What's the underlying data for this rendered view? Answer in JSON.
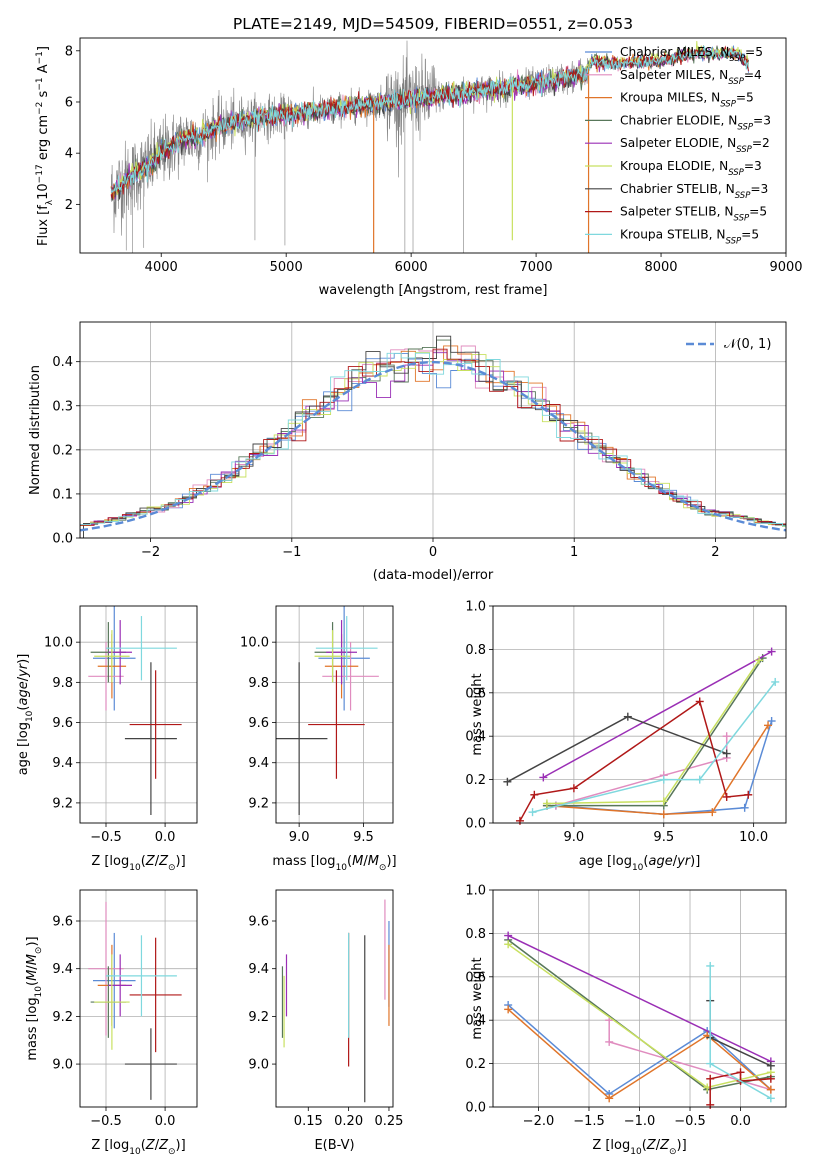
{
  "title": "PLATE=2149, MJD=54509, FIBERID=0551, z=0.053",
  "colors": {
    "Chabrier MILES": "#5b8bd6",
    "Salpeter MILES": "#e08cbf",
    "Kroupa MILES": "#e0752a",
    "Chabrier ELODIE": "#58775a",
    "Salpeter ELODIE": "#9a2fb5",
    "Kroupa ELODIE": "#c8e060",
    "Chabrier STELIB": "#444444",
    "Salpeter STELIB": "#b01818",
    "Kroupa STELIB": "#7fd8de",
    "data": "#808080",
    "normal": "#5b8bd6"
  },
  "legend_labels": [
    {
      "pre": "Chabrier MILES, N",
      "sub": "SSP",
      "post": "=5"
    },
    {
      "pre": "Salpeter MILES, N",
      "sub": "SSP",
      "post": "=4"
    },
    {
      "pre": "Kroupa MILES, N",
      "sub": "SSP",
      "post": "=5"
    },
    {
      "pre": "Chabrier ELODIE, N",
      "sub": "SSP",
      "post": "=3"
    },
    {
      "pre": "Salpeter ELODIE, N",
      "sub": "SSP",
      "post": "=2"
    },
    {
      "pre": "Kroupa ELODIE, N",
      "sub": "SSP",
      "post": "=3"
    },
    {
      "pre": "Chabrier STELIB, N",
      "sub": "SSP",
      "post": "=3"
    },
    {
      "pre": "Salpeter STELIB, N",
      "sub": "SSP",
      "post": "=5"
    },
    {
      "pre": "Kroupa STELIB, N",
      "sub": "SSP",
      "post": "=5"
    }
  ],
  "chart_data": [
    {
      "id": "spectrum",
      "type": "line",
      "xlabel": "wavelength [Angstrom, rest frame]",
      "ylabel": "Flux [f_λ 10^-17 erg cm^-2 s^-1 A^-1]",
      "xlim": [
        3350,
        9000
      ],
      "ylim": [
        0.1,
        8.5
      ],
      "xticks": [
        "4000",
        "5000",
        "6000",
        "7000",
        "8000",
        "9000"
      ],
      "yticks": [
        "2",
        "4",
        "6",
        "8"
      ],
      "grid": false,
      "legend": "top-right",
      "continuum_knots": [
        [
          3600,
          2.4
        ],
        [
          3700,
          2.9
        ],
        [
          3800,
          3.2
        ],
        [
          3900,
          3.5
        ],
        [
          4000,
          4.0
        ],
        [
          4100,
          4.3
        ],
        [
          4200,
          4.6
        ],
        [
          4300,
          4.6
        ],
        [
          4400,
          4.9
        ],
        [
          4500,
          5.1
        ],
        [
          4600,
          5.2
        ],
        [
          4800,
          5.4
        ],
        [
          5000,
          5.5
        ],
        [
          5200,
          5.6
        ],
        [
          5500,
          5.8
        ],
        [
          6000,
          6.1
        ],
        [
          6500,
          6.4
        ],
        [
          7000,
          6.7
        ],
        [
          7400,
          7.1
        ],
        [
          7450,
          7.6
        ],
        [
          7600,
          7.5
        ],
        [
          8000,
          7.6
        ],
        [
          8300,
          7.9
        ],
        [
          8600,
          7.9
        ],
        [
          8650,
          7.7
        ],
        [
          8700,
          7.5
        ]
      ],
      "data_range": [
        3600,
        7420
      ],
      "data_spikes": [
        [
          3720,
          0.2
        ],
        [
          3770,
          0.1
        ],
        [
          3860,
          0.3
        ],
        [
          4750,
          0.6
        ],
        [
          4990,
          0.4
        ],
        [
          5950,
          0.1
        ],
        [
          6015,
          0.1
        ],
        [
          6420,
          0.1
        ]
      ],
      "model_dips": [
        [
          3620,
          2.2
        ],
        [
          5700,
          0.1
        ],
        [
          6810,
          0.6
        ],
        [
          7420,
          0.1
        ]
      ]
    },
    {
      "id": "residuals",
      "type": "histogram",
      "xlabel": "(data-model)/error",
      "ylabel": "Normed distribution",
      "xlim": [
        -2.5,
        2.5
      ],
      "ylim": [
        0,
        0.49
      ],
      "xticks": [
        "-2",
        "-1",
        "0",
        "1",
        "2"
      ],
      "yticks": [
        "0.0",
        "0.1",
        "0.2",
        "0.3",
        "0.4"
      ],
      "grid": true,
      "legend": "top-right",
      "normal_label": "𝒩(0, 1)",
      "bin_width": 0.1
    },
    {
      "id": "age_Z",
      "type": "errorbar",
      "xlabel": "Z [log10(Z/Z⊙)]",
      "ylabel": "age [log10(age/yr)]",
      "xlim": [
        -0.72,
        0.27
      ],
      "ylim": [
        9.1,
        10.18
      ],
      "xticks": [
        "-0.5",
        "0.0"
      ],
      "yticks": [
        "9.2",
        "9.4",
        "9.6",
        "9.8",
        "10.0"
      ],
      "grid": true,
      "points": [
        {
          "model": "Chabrier MILES",
          "x": -0.43,
          "xerr": 0.18,
          "y": 9.92,
          "yerr": 0.26
        },
        {
          "model": "Salpeter MILES",
          "x": -0.5,
          "xerr": 0.15,
          "y": 9.83,
          "yerr": 0.17
        },
        {
          "model": "Kroupa MILES",
          "x": -0.45,
          "xerr": 0.12,
          "y": 9.88,
          "yerr": 0.16
        },
        {
          "model": "Chabrier ELODIE",
          "x": -0.48,
          "xerr": 0.15,
          "y": 9.95,
          "yerr": 0.15
        },
        {
          "model": "Salpeter ELODIE",
          "x": -0.38,
          "xerr": 0.1,
          "y": 9.95,
          "yerr": 0.16
        },
        {
          "model": "Kroupa ELODIE",
          "x": -0.45,
          "xerr": 0.15,
          "y": 9.93,
          "yerr": 0.13
        },
        {
          "model": "Chabrier STELIB",
          "x": -0.12,
          "xerr": 0.22,
          "y": 9.52,
          "yerr": 0.38
        },
        {
          "model": "Salpeter STELIB",
          "x": -0.08,
          "xerr": 0.22,
          "y": 9.59,
          "yerr": 0.27
        },
        {
          "model": "Kroupa STELIB",
          "x": -0.2,
          "xerr": 0.3,
          "y": 9.97,
          "yerr": 0.16
        }
      ]
    },
    {
      "id": "age_mass",
      "type": "errorbar",
      "xlabel": "mass [log10(M/M⊙)]",
      "ylabel": "",
      "xlim": [
        8.82,
        9.73
      ],
      "ylim": [
        9.1,
        10.18
      ],
      "xticks": [
        "9.0",
        "9.5"
      ],
      "yticks": [
        "9.2",
        "9.4",
        "9.6",
        "9.8",
        "10.0"
      ],
      "grid": true,
      "points": [
        {
          "model": "Chabrier MILES",
          "x": 9.35,
          "xerr": 0.2,
          "y": 9.92,
          "yerr": 0.26
        },
        {
          "model": "Salpeter MILES",
          "x": 9.4,
          "xerr": 0.22,
          "y": 9.83,
          "yerr": 0.17
        },
        {
          "model": "Kroupa MILES",
          "x": 9.33,
          "xerr": 0.13,
          "y": 9.88,
          "yerr": 0.16
        },
        {
          "model": "Chabrier ELODIE",
          "x": 9.26,
          "xerr": 0.14,
          "y": 9.95,
          "yerr": 0.15
        },
        {
          "model": "Salpeter ELODIE",
          "x": 9.33,
          "xerr": 0.12,
          "y": 9.95,
          "yerr": 0.16
        },
        {
          "model": "Kroupa ELODIE",
          "x": 9.26,
          "xerr": 0.14,
          "y": 9.93,
          "yerr": 0.13
        },
        {
          "model": "Chabrier STELIB",
          "x": 9.0,
          "xerr": 0.22,
          "y": 9.52,
          "yerr": 0.38
        },
        {
          "model": "Salpeter STELIB",
          "x": 9.29,
          "xerr": 0.22,
          "y": 9.59,
          "yerr": 0.27
        },
        {
          "model": "Kroupa STELIB",
          "x": 9.37,
          "xerr": 0.24,
          "y": 9.97,
          "yerr": 0.16
        }
      ]
    },
    {
      "id": "mass_Z",
      "type": "errorbar",
      "xlabel": "Z [log10(Z/Z⊙)]",
      "ylabel": "mass [log10(M/M⊙)]",
      "xlim": [
        -0.72,
        0.27
      ],
      "ylim": [
        8.82,
        9.73
      ],
      "xticks": [
        "-0.5",
        "0.0"
      ],
      "yticks": [
        "9.0",
        "9.2",
        "9.4",
        "9.6"
      ],
      "grid": true,
      "points": [
        {
          "model": "Chabrier MILES",
          "x": -0.43,
          "xerr": 0.18,
          "y": 9.35,
          "yerr": 0.2
        },
        {
          "model": "Salpeter MILES",
          "x": -0.5,
          "xerr": 0.15,
          "y": 9.4,
          "yerr": 0.28
        },
        {
          "model": "Kroupa MILES",
          "x": -0.45,
          "xerr": 0.12,
          "y": 9.33,
          "yerr": 0.17
        },
        {
          "model": "Chabrier ELODIE",
          "x": -0.48,
          "xerr": 0.15,
          "y": 9.26,
          "yerr": 0.15
        },
        {
          "model": "Salpeter ELODIE",
          "x": -0.38,
          "xerr": 0.1,
          "y": 9.33,
          "yerr": 0.13
        },
        {
          "model": "Kroupa ELODIE",
          "x": -0.45,
          "xerr": 0.15,
          "y": 9.26,
          "yerr": 0.2
        },
        {
          "model": "Chabrier STELIB",
          "x": -0.12,
          "xerr": 0.22,
          "y": 9.0,
          "yerr": 0.15
        },
        {
          "model": "Salpeter STELIB",
          "x": -0.08,
          "xerr": 0.22,
          "y": 9.29,
          "yerr": 0.24
        },
        {
          "model": "Kroupa STELIB",
          "x": -0.2,
          "xerr": 0.3,
          "y": 9.37,
          "yerr": 0.17
        }
      ]
    },
    {
      "id": "mass_ebv",
      "type": "errorbar",
      "xlabel": "E(B-V)",
      "ylabel": "",
      "xlim": [
        0.11,
        0.255
      ],
      "ylim": [
        8.82,
        9.73
      ],
      "xticks": [
        "0.15",
        "0.20",
        "0.25"
      ],
      "yticks": [
        "9.0",
        "9.2",
        "9.4",
        "9.6"
      ],
      "grid": false,
      "points": [
        {
          "model": "Chabrier MILES",
          "x": 0.25,
          "xerr": 0,
          "y": 9.42,
          "yerr": 0.18
        },
        {
          "model": "Salpeter MILES",
          "x": 0.245,
          "xerr": 0,
          "y": 9.48,
          "yerr": 0.21
        },
        {
          "model": "Kroupa MILES",
          "x": 0.25,
          "xerr": 0,
          "y": 9.33,
          "yerr": 0.17
        },
        {
          "model": "Chabrier ELODIE",
          "x": 0.118,
          "xerr": 0,
          "y": 9.26,
          "yerr": 0.15
        },
        {
          "model": "Salpeter ELODIE",
          "x": 0.123,
          "xerr": 0,
          "y": 9.33,
          "yerr": 0.13
        },
        {
          "model": "Kroupa ELODIE",
          "x": 0.12,
          "xerr": 0,
          "y": 9.22,
          "yerr": 0.15
        },
        {
          "model": "Chabrier STELIB",
          "x": 0.22,
          "xerr": 0,
          "y": 9.19,
          "yerr": 0.35
        },
        {
          "model": "Salpeter STELIB",
          "x": 0.2,
          "xerr": 0,
          "y": 9.27,
          "yerr": 0.28
        },
        {
          "model": "Kroupa STELIB",
          "x": 0.2,
          "xerr": 0,
          "y": 9.33,
          "yerr": 0.22
        }
      ]
    },
    {
      "id": "weight_age",
      "type": "line",
      "xlabel": "age [log10(age/yr)]",
      "ylabel": "mass weight",
      "xlim": [
        8.55,
        10.18
      ],
      "ylim": [
        0,
        1
      ],
      "xticks": [
        "9.0",
        "9.5",
        "10.0"
      ],
      "yticks": [
        "0.0",
        "0.2",
        "0.4",
        "0.6",
        "0.8",
        "1.0"
      ],
      "grid": true,
      "series": [
        {
          "model": "Chabrier MILES",
          "x": [
            8.9,
            9.5,
            9.95,
            10.1
          ],
          "y": [
            0.08,
            0.04,
            0.07,
            0.47
          ]
        },
        {
          "model": "Salpeter MILES",
          "x": [
            8.9,
            9.5,
            9.85,
            9.85
          ],
          "y": [
            0.08,
            0.22,
            0.3,
            0.4
          ]
        },
        {
          "model": "Kroupa MILES",
          "x": [
            8.85,
            9.5,
            9.77,
            10.08
          ],
          "y": [
            0.08,
            0.04,
            0.05,
            0.45
          ]
        },
        {
          "model": "Chabrier ELODIE",
          "x": [
            8.85,
            9.5,
            10.05
          ],
          "y": [
            0.08,
            0.08,
            0.76
          ]
        },
        {
          "model": "Salpeter ELODIE",
          "x": [
            8.83,
            10.1
          ],
          "y": [
            0.21,
            0.79
          ]
        },
        {
          "model": "Kroupa ELODIE",
          "x": [
            8.85,
            9.5,
            10.03
          ],
          "y": [
            0.09,
            0.1,
            0.75
          ]
        },
        {
          "model": "Chabrier STELIB",
          "x": [
            8.63,
            9.3,
            9.85
          ],
          "y": [
            0.19,
            0.49,
            0.32
          ]
        },
        {
          "model": "Salpeter STELIB",
          "x": [
            8.7,
            8.78,
            9.0,
            9.7,
            9.85,
            9.97
          ],
          "y": [
            0.01,
            0.13,
            0.16,
            0.56,
            0.12,
            0.13
          ]
        },
        {
          "model": "Kroupa STELIB",
          "x": [
            8.77,
            9.5,
            9.7,
            10.12
          ],
          "y": [
            0.05,
            0.2,
            0.2,
            0.65
          ]
        }
      ]
    },
    {
      "id": "weight_Z",
      "type": "line",
      "xlabel": "Z [log10(Z/Z⊙)]",
      "ylabel": "mass weight",
      "xlim": [
        -2.45,
        0.45
      ],
      "ylim": [
        0,
        1
      ],
      "xticks": [
        "-2.0",
        "-1.5",
        "-1.0",
        "-0.5",
        "0.0"
      ],
      "yticks": [
        "0.0",
        "0.2",
        "0.4",
        "0.6",
        "0.8",
        "1.0"
      ],
      "grid": true,
      "series": [
        {
          "model": "Chabrier MILES",
          "x": [
            -2.3,
            -1.3,
            -0.33,
            0.3
          ],
          "y": [
            0.47,
            0.06,
            0.35,
            0.08
          ]
        },
        {
          "model": "Salpeter MILES",
          "x": [
            -1.3,
            -1.3,
            0.3
          ],
          "y": [
            0.4,
            0.3,
            0.08
          ]
        },
        {
          "model": "Kroupa MILES",
          "x": [
            -2.3,
            -1.3,
            -0.33,
            0.3
          ],
          "y": [
            0.45,
            0.04,
            0.33,
            0.08
          ]
        },
        {
          "model": "Chabrier ELODIE",
          "x": [
            -2.3,
            -0.33,
            0.3
          ],
          "y": [
            0.77,
            0.08,
            0.14
          ]
        },
        {
          "model": "Salpeter ELODIE",
          "x": [
            -2.3,
            0.3
          ],
          "y": [
            0.79,
            0.21
          ]
        },
        {
          "model": "Kroupa ELODIE",
          "x": [
            -2.3,
            -0.33,
            0.3
          ],
          "y": [
            0.75,
            0.09,
            0.16
          ]
        },
        {
          "model": "Chabrier STELIB",
          "x": [
            -0.3,
            -0.3,
            0.3
          ],
          "y": [
            0.49,
            0.32,
            0.19
          ]
        },
        {
          "model": "Salpeter STELIB",
          "x": [
            -0.3,
            -0.3,
            0.0,
            0.0,
            0.3
          ],
          "y": [
            0.01,
            0.13,
            0.16,
            0.12,
            0.13
          ]
        },
        {
          "model": "Kroupa STELIB",
          "x": [
            -0.3,
            -0.3,
            0.3
          ],
          "y": [
            0.65,
            0.2,
            0.04
          ]
        }
      ]
    }
  ]
}
